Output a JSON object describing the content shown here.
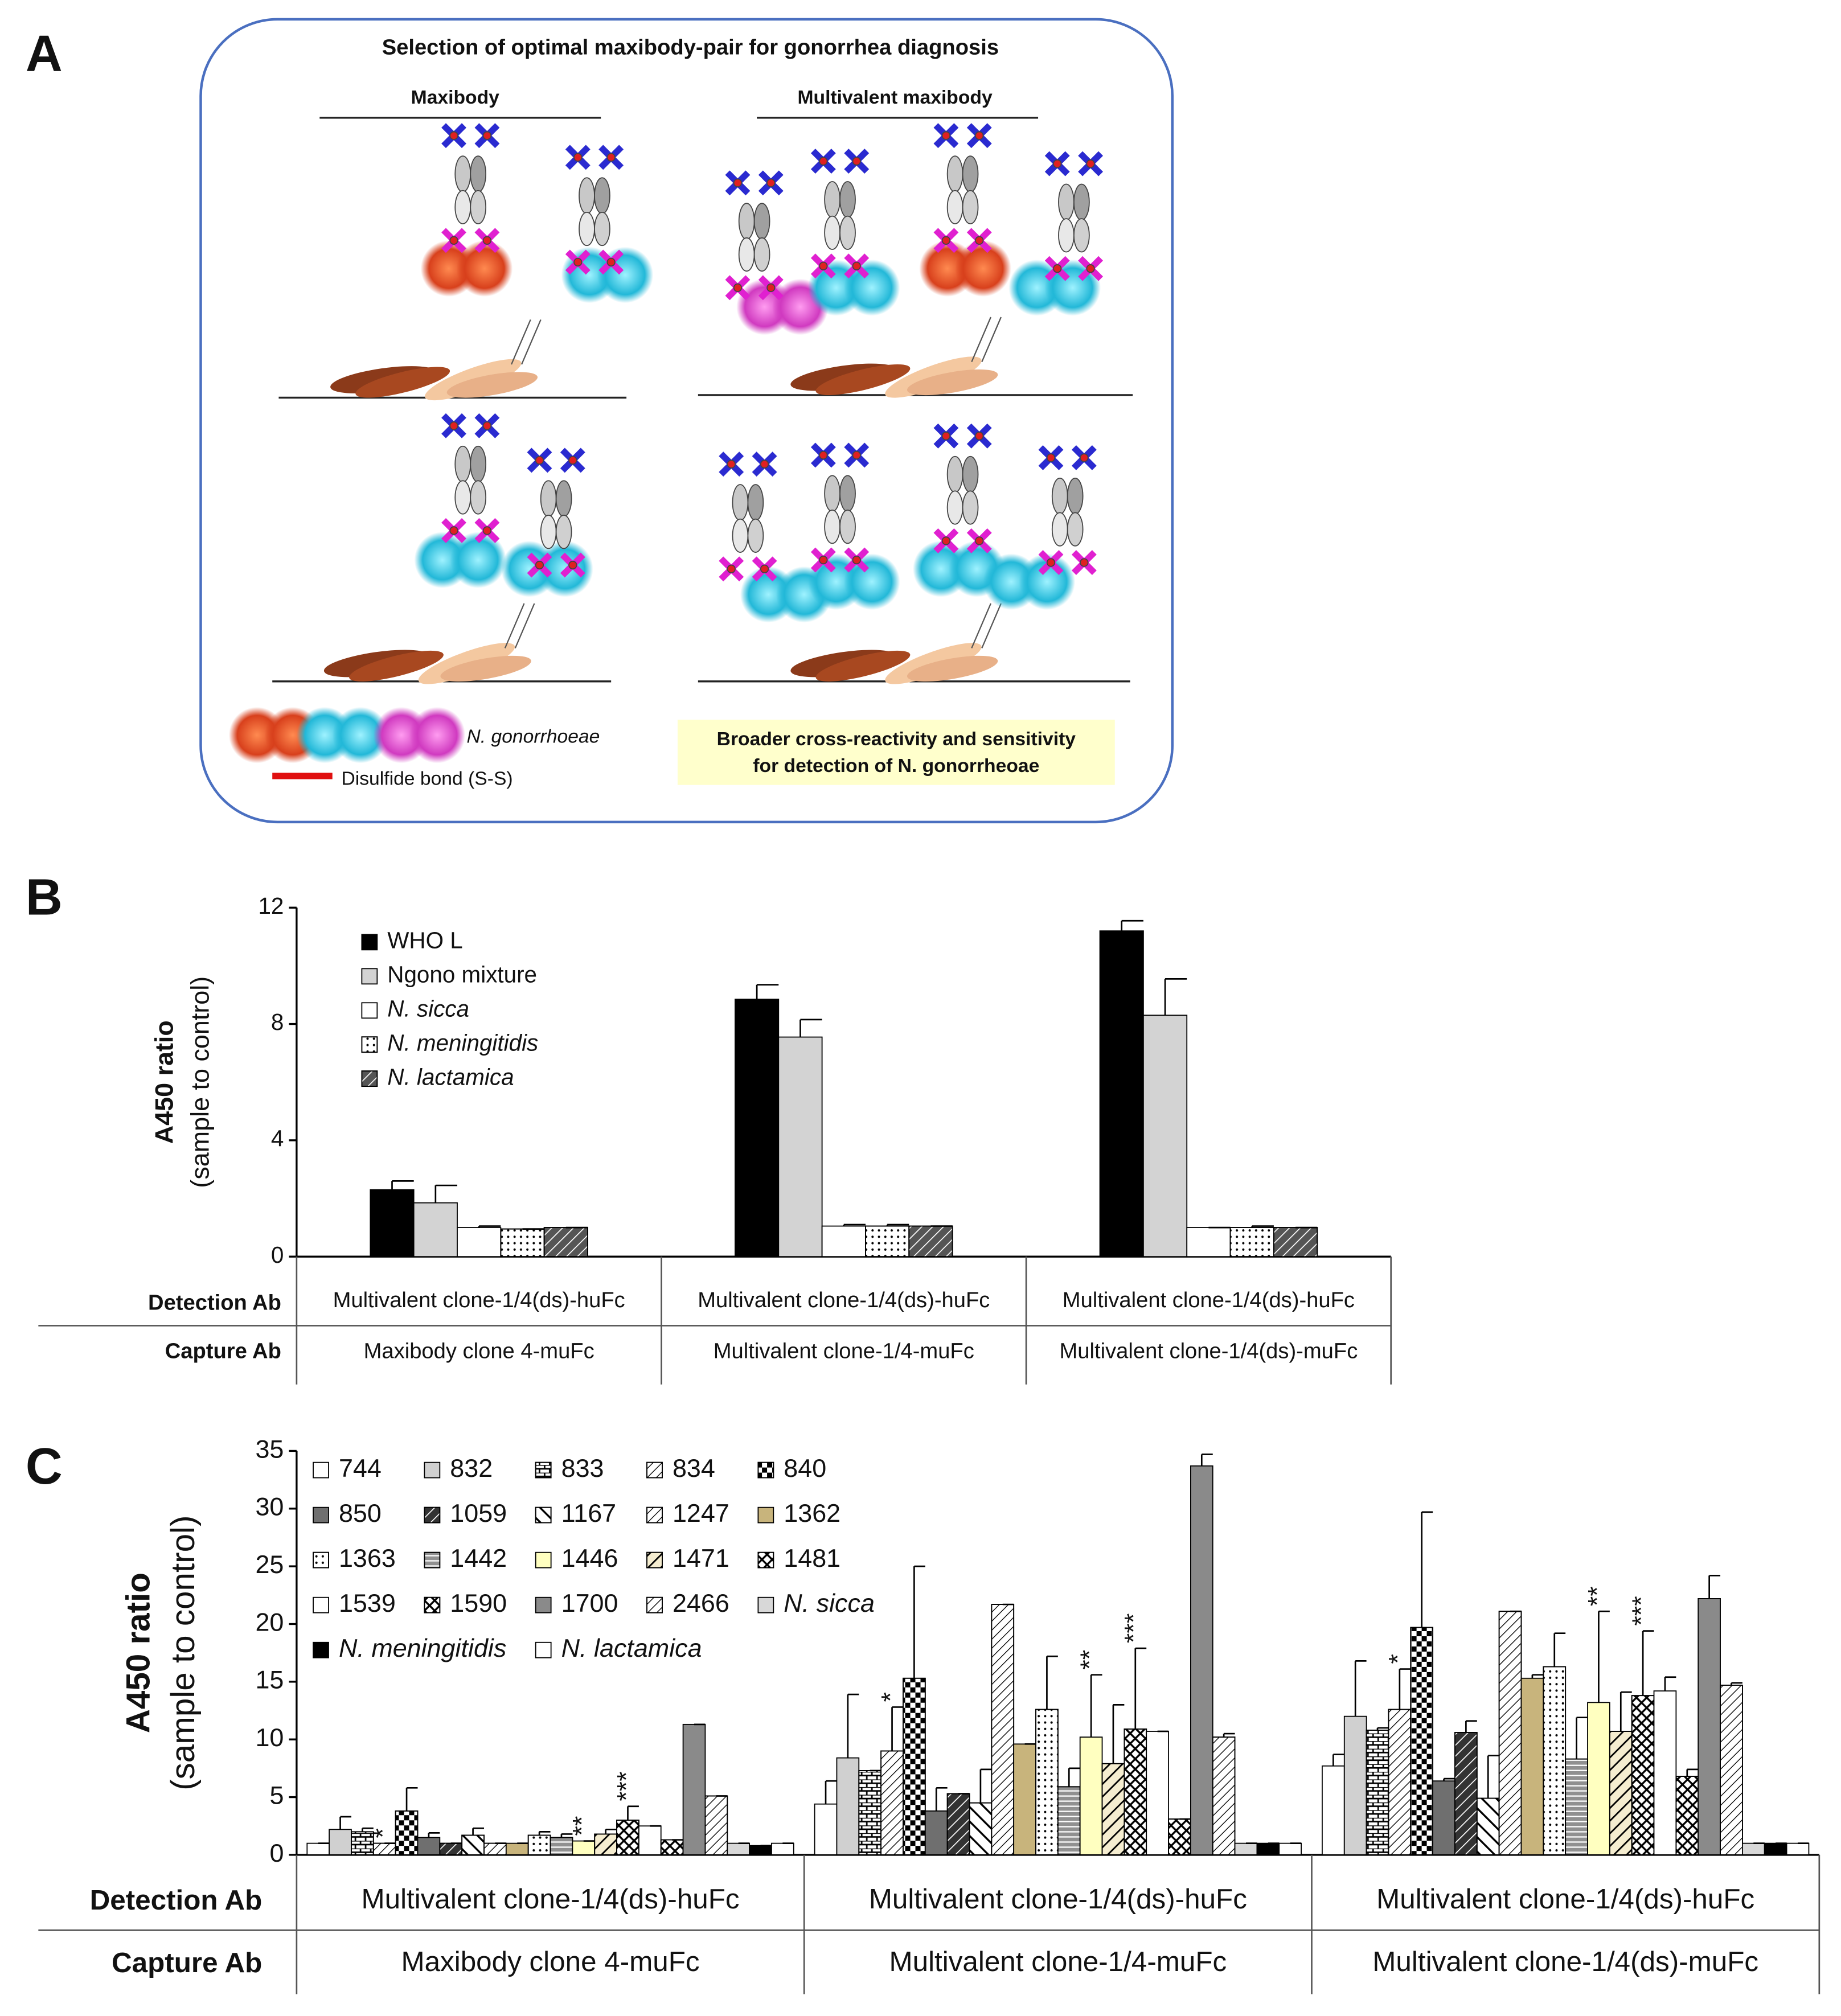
{
  "panel_a": {
    "letter": "A",
    "title": "Selection of optimal maxibody-pair for gonorrhea diagnosis",
    "left_heading": "Maxibody",
    "right_heading": "Multivalent maxibody",
    "legend_bacteria": "N. gonorrhoeae",
    "legend_bond": "Disulfide bond (S-S)",
    "note_lines": [
      "Broader cross-reactivity and sensitivity",
      "for detection of N. gonorrheoae"
    ]
  },
  "chart_data": [
    {
      "type": "bar",
      "letter": "B",
      "ylabel": "A450 ratio",
      "ylabel_sub": "(sample to control)",
      "row_labels": [
        "Detection Ab",
        "Capture Ab"
      ],
      "detection_ab": [
        "Multivalent  clone-1/4(ds)-huFc",
        "Multivalent  clone-1/4(ds)-huFc",
        "Multivalent  clone-1/4(ds)-huFc"
      ],
      "capture_ab": [
        "Maxibody clone 4-muFc",
        "Multivalent  clone-1/4-muFc",
        "Multivalent  clone-1/4(ds)-muFc"
      ],
      "ylim": [
        0,
        12
      ],
      "yticks": [
        0,
        4,
        8,
        12
      ],
      "series": [
        {
          "name": "WHO L",
          "color": "#000000",
          "pattern": "none",
          "values": [
            2.3,
            8.85,
            11.2
          ],
          "errors": [
            0.3,
            0.5,
            0.35
          ]
        },
        {
          "name": "Ngono mixture",
          "color": "#d3d3d3",
          "pattern": "none",
          "values": [
            1.85,
            7.55,
            8.3
          ],
          "errors": [
            0.6,
            0.6,
            1.25
          ]
        },
        {
          "name": "N. sicca",
          "color": "#ffffff",
          "pattern": "none",
          "values": [
            1.0,
            1.05,
            1.0
          ],
          "errors": [
            0.05,
            0.05,
            0
          ]
        },
        {
          "name": "N. meningitidis",
          "color": "#ffffff",
          "pattern": "dots",
          "values": [
            0.95,
            1.05,
            1.0
          ],
          "errors": [
            0,
            0.05,
            0.05
          ]
        },
        {
          "name": "N. lactamica",
          "color": "#555555",
          "pattern": "diagwhite",
          "values": [
            1.0,
            1.05,
            1.0
          ],
          "errors": [
            0,
            0,
            0
          ]
        }
      ]
    },
    {
      "type": "bar",
      "letter": "C",
      "ylabel": "A450 ratio",
      "ylabel_sub": "(sample to control)",
      "row_labels": [
        "Detection Ab",
        "Capture Ab"
      ],
      "detection_ab": [
        "Multivalent clone-1/4(ds)-huFc",
        "Multivalent clone-1/4(ds)-huFc",
        "Multivalent clone-1/4(ds)-huFc"
      ],
      "capture_ab": [
        "Maxibody clone 4-muFc",
        "Multivalent clone-1/4-muFc",
        "Multivalent clone-1/4(ds)-muFc"
      ],
      "ylim": [
        0,
        35
      ],
      "yticks": [
        0,
        5,
        10,
        15,
        20,
        25,
        30,
        35
      ],
      "series": [
        {
          "name": "744",
          "color": "#ffffff",
          "pattern": "none",
          "values": [
            1.0,
            4.4,
            7.7
          ],
          "errors": [
            0,
            2.0,
            1.0
          ]
        },
        {
          "name": "832",
          "color": "#d0d0d0",
          "pattern": "none",
          "values": [
            2.2,
            8.4,
            12.0
          ],
          "errors": [
            1.1,
            5.5,
            4.8
          ]
        },
        {
          "name": "833",
          "color": "#ffffff",
          "pattern": "brick",
          "values": [
            2.0,
            7.3,
            10.8
          ],
          "errors": [
            0.3,
            0,
            0.2
          ]
        },
        {
          "name": "834",
          "color": "#ffffff",
          "pattern": "diag",
          "values": [
            1.0,
            9.0,
            12.6
          ],
          "errors": [
            0,
            3.8,
            3.5
          ],
          "significance": [
            "*",
            "*",
            "*"
          ]
        },
        {
          "name": "840",
          "color": "#ffffff",
          "pattern": "checker",
          "values": [
            3.8,
            15.3,
            19.7
          ],
          "errors": [
            2.0,
            9.7,
            10.0
          ]
        },
        {
          "name": "850",
          "color": "#6f6f6f",
          "pattern": "none",
          "values": [
            1.5,
            3.8,
            6.4
          ],
          "errors": [
            0.4,
            2.0,
            0.2
          ]
        },
        {
          "name": "1059",
          "color": "#333333",
          "pattern": "diagwhite",
          "values": [
            1.0,
            5.3,
            10.6
          ],
          "errors": [
            0,
            0,
            1.0
          ]
        },
        {
          "name": "1167",
          "color": "#ffffff",
          "pattern": "backdiag",
          "values": [
            1.7,
            4.5,
            4.9
          ],
          "errors": [
            0.6,
            2.9,
            3.7
          ]
        },
        {
          "name": "1247",
          "color": "#ffffff",
          "pattern": "diag",
          "values": [
            1.0,
            21.7,
            21.1
          ],
          "errors": [
            0,
            0,
            0
          ]
        },
        {
          "name": "1362",
          "color": "#c8b47c",
          "pattern": "none",
          "values": [
            1.0,
            9.6,
            15.3
          ],
          "errors": [
            0,
            0,
            0.3
          ]
        },
        {
          "name": "1363",
          "color": "#ffffff",
          "pattern": "dots",
          "values": [
            1.7,
            12.6,
            16.3
          ],
          "errors": [
            0.3,
            4.6,
            2.9
          ]
        },
        {
          "name": "1442",
          "color": "#909090",
          "pattern": "hlines",
          "values": [
            1.5,
            5.9,
            8.3
          ],
          "errors": [
            0.3,
            1.6,
            3.6
          ]
        },
        {
          "name": "1446",
          "color": "#ffffc0",
          "pattern": "none",
          "values": [
            1.2,
            10.2,
            13.2
          ],
          "errors": [
            0,
            5.4,
            7.9
          ],
          "significance": [
            "**",
            "**",
            "**"
          ]
        },
        {
          "name": "1471",
          "color": "#f5edd0",
          "pattern": "diagthick",
          "values": [
            1.8,
            7.9,
            10.7
          ],
          "errors": [
            0.4,
            5.1,
            3.4
          ]
        },
        {
          "name": "1481",
          "color": "#ffffff",
          "pattern": "cross",
          "values": [
            3.0,
            10.9,
            13.8
          ],
          "errors": [
            1.2,
            7.0,
            5.6
          ],
          "significance": [
            "***",
            "***",
            "***"
          ]
        },
        {
          "name": "1539",
          "color": "#ffffff",
          "pattern": "none",
          "values": [
            2.5,
            10.7,
            14.2
          ],
          "errors": [
            0,
            0,
            1.2
          ]
        },
        {
          "name": "1590",
          "color": "#ffffff",
          "pattern": "cross",
          "values": [
            1.3,
            3.1,
            6.8
          ],
          "errors": [
            0,
            0,
            0.6
          ]
        },
        {
          "name": "1700",
          "color": "#8a8a8a",
          "pattern": "none",
          "values": [
            11.3,
            33.7,
            22.2
          ],
          "errors": [
            0,
            1.0,
            2.0
          ]
        },
        {
          "name": "2466",
          "color": "#ffffff",
          "pattern": "diag",
          "values": [
            5.1,
            10.2,
            14.7
          ],
          "errors": [
            0,
            0.3,
            0.2
          ]
        },
        {
          "name": "N. sicca",
          "color": "#d8d8d8",
          "pattern": "none",
          "values": [
            1.0,
            1.0,
            1.0
          ],
          "errors": [
            0,
            0,
            0
          ]
        },
        {
          "name": "N. meningitidis",
          "color": "#000000",
          "pattern": "none",
          "values": [
            0.8,
            1.0,
            1.0
          ],
          "errors": [
            0,
            0,
            0
          ]
        },
        {
          "name": "N. lactamica",
          "color": "#ffffff",
          "pattern": "none",
          "values": [
            1.0,
            1.0,
            1.0
          ],
          "errors": [
            0,
            0,
            0
          ]
        }
      ]
    }
  ]
}
